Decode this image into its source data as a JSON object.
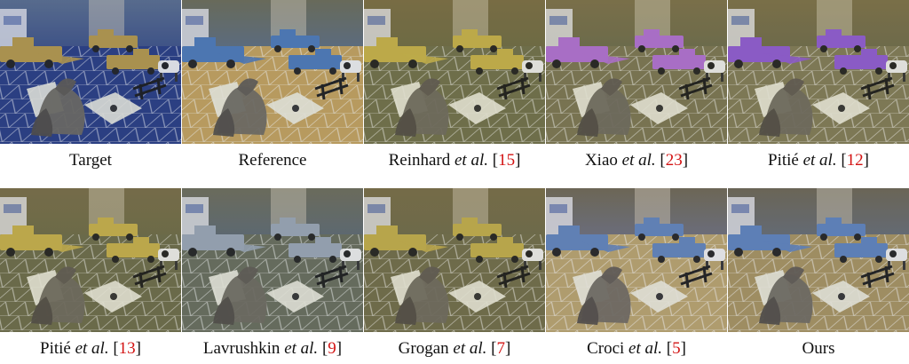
{
  "figure": {
    "panels": [
      {
        "id": "target",
        "name": "Target",
        "et_al": "",
        "ref": "",
        "tint": "#3b4f86",
        "table": "#2a3d82",
        "toy": "#b99a48",
        "bg": "#5c6f8f"
      },
      {
        "id": "reference",
        "name": "Reference",
        "et_al": "",
        "ref": "",
        "tint": "#5a6d84",
        "table": "#c4a15a",
        "toy": "#4b78b8",
        "bg": "#6a6a55"
      },
      {
        "id": "reinhard",
        "name": "Reinhard ",
        "et_al": "et al.",
        "ref": "15",
        "tint": "#6c6a45",
        "table": "#6f6f4c",
        "toy": "#c8b24a",
        "bg": "#7a6d45"
      },
      {
        "id": "xiao",
        "name": "Xiao ",
        "et_al": "et al.",
        "ref": "23",
        "tint": "#6a6b4d",
        "table": "#7a7553",
        "toy": "#b16fd6",
        "bg": "#7c7049"
      },
      {
        "id": "pitie12",
        "name": "Pitié ",
        "et_al": "et al.",
        "ref": "12",
        "tint": "#6c6a4b",
        "table": "#807a57",
        "toy": "#8f59d6",
        "bg": "#7c7048"
      },
      {
        "id": "pitie13",
        "name": "Pitié ",
        "et_al": "et al.",
        "ref": "13",
        "tint": "#6b6a48",
        "table": "#6a6a4a",
        "toy": "#c7b04c",
        "bg": "#776c49"
      },
      {
        "id": "lavrushkin",
        "name": "Lavrushkin ",
        "et_al": "et al.",
        "ref": "9",
        "tint": "#5b6874",
        "table": "#676c5a",
        "toy": "#9aa6b5",
        "bg": "#6d6b59"
      },
      {
        "id": "grogan",
        "name": "Grogan ",
        "et_al": "et al.",
        "ref": "7",
        "tint": "#6c6a4a",
        "table": "#6f6b4a",
        "toy": "#c2ad4c",
        "bg": "#776b48"
      },
      {
        "id": "croci",
        "name": "Croci ",
        "et_al": "et al.",
        "ref": "5",
        "tint": "#6b6f80",
        "table": "#b9a36c",
        "toy": "#5f83bb",
        "bg": "#6d6650"
      },
      {
        "id": "ours",
        "name": "Ours",
        "et_al": "",
        "ref": "",
        "tint": "#646b78",
        "table": "#a7925f",
        "toy": "#5d82bf",
        "bg": "#6b6552"
      }
    ],
    "close_bracket": "]",
    "open_bracket": "["
  }
}
